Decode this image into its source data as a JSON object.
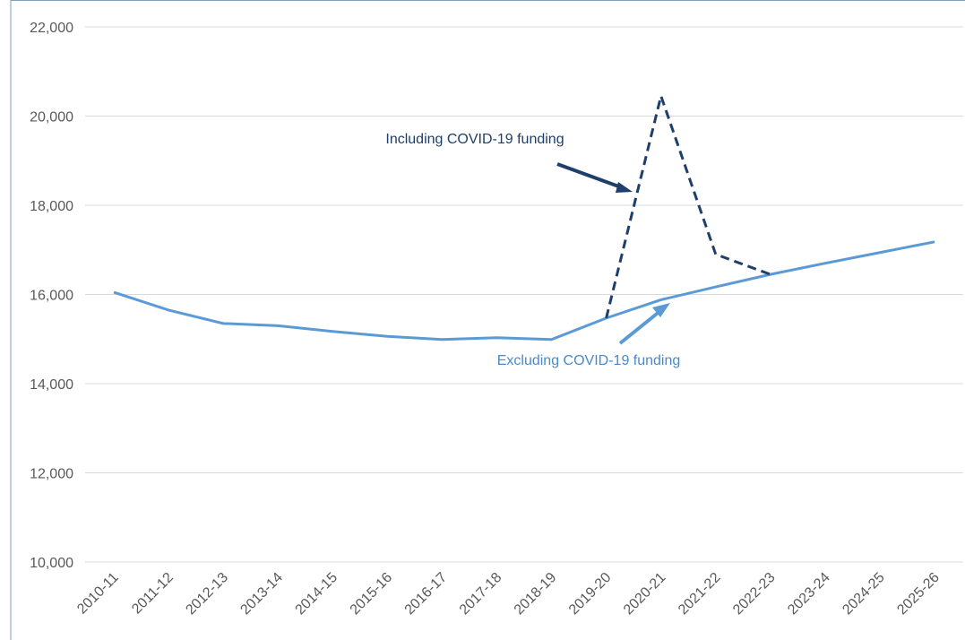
{
  "chart_data": {
    "type": "line",
    "categories": [
      "2010-11",
      "2011-12",
      "2012-13",
      "2013-14",
      "2014-15",
      "2015-16",
      "2016-17",
      "2017-18",
      "2018-19",
      "2019-20",
      "2020-21",
      "2021-22",
      "2022-23",
      "2023-24",
      "2024-25",
      "2025-26"
    ],
    "series": [
      {
        "name": "Excluding COVID-19 funding",
        "color": "#5b9bd5",
        "dash": false,
        "values": [
          16050,
          15650,
          15350,
          15300,
          15170,
          15060,
          14990,
          15030,
          14990,
          15470,
          15880,
          16170,
          16450,
          16700,
          16940,
          17180
        ]
      },
      {
        "name": "Including COVID-19 funding",
        "color": "#1f3f6b",
        "dash": true,
        "values": [
          null,
          null,
          null,
          null,
          null,
          null,
          null,
          null,
          null,
          15470,
          20450,
          16900,
          16450,
          null,
          null,
          null
        ]
      }
    ],
    "ylim": [
      10000,
      22000
    ],
    "yticks": [
      {
        "value": 10000,
        "label": "10,000"
      },
      {
        "value": 12000,
        "label": "12,000"
      },
      {
        "value": 14000,
        "label": "14,000"
      },
      {
        "value": 16000,
        "label": "16,000"
      },
      {
        "value": 18000,
        "label": "18,000"
      },
      {
        "value": 20000,
        "label": "20,000"
      },
      {
        "value": 22000,
        "label": "22,000"
      }
    ],
    "grid": true
  }
}
